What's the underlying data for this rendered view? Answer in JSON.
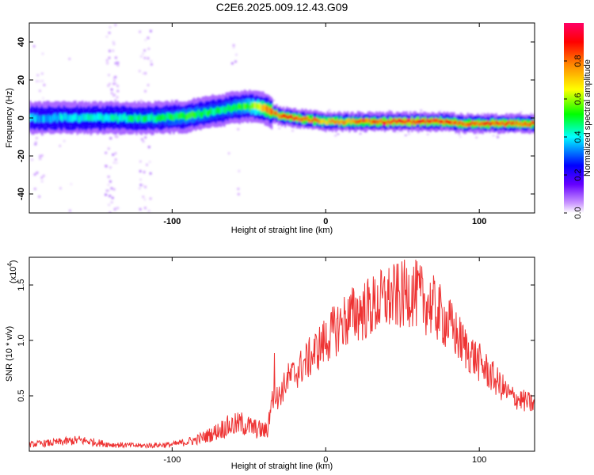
{
  "figure_title": "C2E6.2025.009.12.43.G09",
  "chart_data": [
    {
      "type": "heatmap",
      "xlabel": "Height of straight line (km)",
      "ylabel": "Frequency (Hz)",
      "xlim": [
        -193,
        136
      ],
      "ylim": [
        -50,
        50
      ],
      "x_ticks": [
        -100,
        0,
        100
      ],
      "y_ticks": [
        -40,
        -20,
        0,
        20,
        40
      ],
      "colorbar": {
        "label": "Normalized spectral amplitude",
        "range": [
          0,
          1
        ],
        "ticks": [
          0.0,
          0.2,
          0.4,
          0.6,
          0.8
        ],
        "tick_labels": [
          "0.0",
          "0.2",
          "0.4",
          "0.6",
          "0.8"
        ],
        "colormap": [
          "#ffffff",
          "#cc99ff",
          "#6600ff",
          "#0000ff",
          "#00ffff",
          "#00ff00",
          "#ffff00",
          "#ff8800",
          "#ff0000",
          "#ff0066"
        ]
      },
      "ridge": {
        "x": [
          -193,
          -150,
          -110,
          -90,
          -70,
          -55,
          -45,
          -40,
          -38,
          -30,
          -20,
          0,
          20,
          50,
          75,
          90,
          110,
          136
        ],
        "frequency": [
          0,
          0,
          0,
          1,
          4,
          6,
          6,
          5,
          4,
          1,
          0,
          -2,
          -2,
          -2,
          -2,
          -3,
          -3,
          -3
        ],
        "peak_amplitude": [
          0.45,
          0.5,
          0.55,
          0.6,
          0.55,
          0.6,
          0.7,
          0.8,
          0.85,
          0.9,
          0.9,
          0.8,
          0.85,
          0.95,
          0.9,
          0.85,
          0.9,
          0.85
        ]
      }
    },
    {
      "type": "line",
      "xlabel": "Height of straight line (km)",
      "ylabel": "SNR (10 * v/v)",
      "y_scale_note": "(x10",
      "y_scale_exponent": "4",
      "xlim": [
        -193,
        136
      ],
      "ylim": [
        0,
        17500
      ],
      "x_ticks": [
        -100,
        0,
        100
      ],
      "y_ticks": [
        5000,
        10000,
        15000
      ],
      "y_tick_labels": [
        "0.5",
        "1.0",
        "1.5"
      ],
      "line_color": "#ee3333",
      "series": [
        {
          "x": [
            -193,
            -175,
            -160,
            -140,
            -120,
            -100,
            -85,
            -75,
            -65,
            -55,
            -45,
            -38,
            -35,
            -30,
            -25,
            -20,
            -10,
            0,
            10,
            20,
            30,
            40,
            50,
            55,
            60,
            70,
            80,
            90,
            100,
            110,
            120,
            130,
            136
          ],
          "y": [
            600,
            800,
            1000,
            600,
            500,
            600,
            1000,
            1500,
            2200,
            2500,
            2000,
            1800,
            4500,
            5000,
            6500,
            7000,
            8500,
            10000,
            11500,
            12500,
            13000,
            13800,
            14000,
            14500,
            14000,
            13000,
            11500,
            9500,
            8000,
            6500,
            5000,
            4500,
            4200
          ]
        }
      ]
    }
  ]
}
